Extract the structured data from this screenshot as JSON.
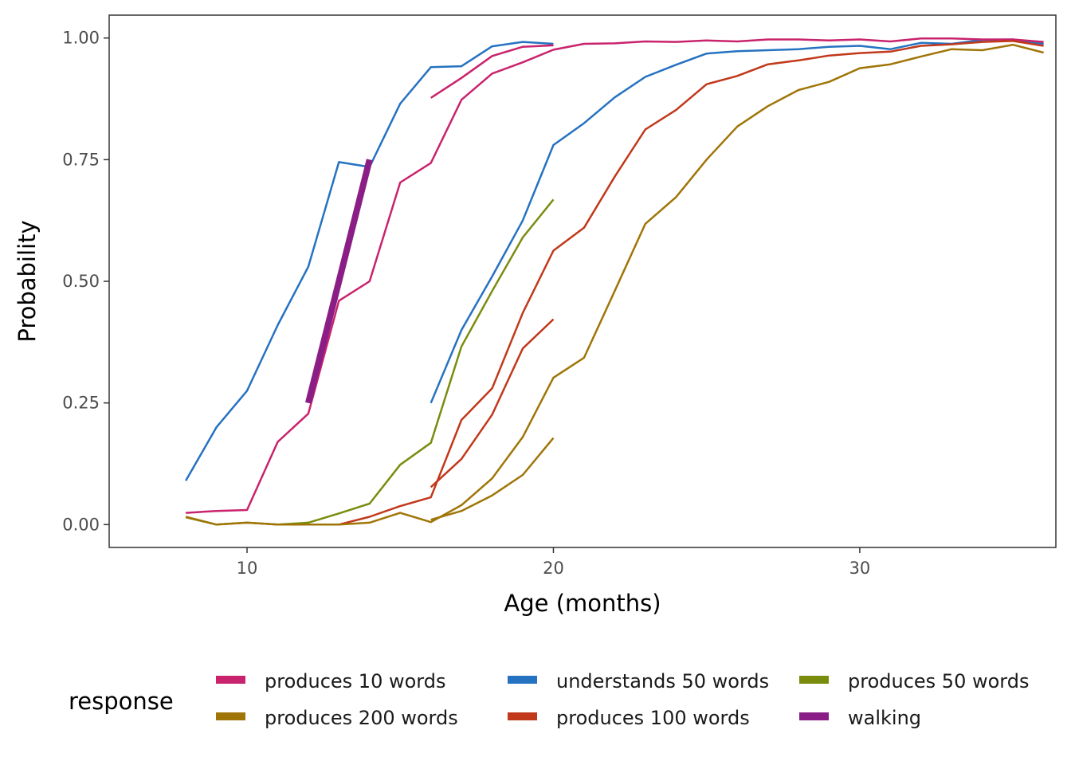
{
  "chart_data": {
    "type": "line",
    "xlabel": "Age (months)",
    "ylabel": "Probability",
    "xlim": [
      5.5,
      36.4
    ],
    "ylim": [
      -0.047,
      1.047
    ],
    "x_ticks": [
      10,
      20,
      30
    ],
    "x_tick_labels": [
      "10",
      "20",
      "30"
    ],
    "y_ticks": [
      0,
      0.25,
      0.5,
      0.75,
      1.0
    ],
    "y_tick_labels": [
      "0.00",
      "0.25",
      "0.50",
      "0.75",
      "1.00"
    ],
    "grid": false,
    "legend": {
      "title": "response",
      "position": "bottom",
      "items": [
        {
          "label": "produces 10 words",
          "color": "#c9236d"
        },
        {
          "label": "produces 200 words",
          "color": "#a07507"
        },
        {
          "label": "understands 50 words",
          "color": "#2572c1"
        },
        {
          "label": "produces 100 words",
          "color": "#c1381a"
        },
        {
          "label": "produces 50 words",
          "color": "#7a8c0d"
        },
        {
          "label": "walking",
          "color": "#8a1e86"
        }
      ]
    },
    "series": [
      {
        "name": "understands 50 words",
        "color": "#2572c1",
        "width": 2.5,
        "x": [
          8,
          9,
          10,
          11,
          12,
          13,
          14,
          15,
          16,
          17,
          18,
          19,
          20
        ],
        "y": [
          0.09,
          0.2,
          0.275,
          0.41,
          0.53,
          0.745,
          0.735,
          0.865,
          0.94,
          0.942,
          0.983,
          0.992,
          0.988
        ]
      },
      {
        "name": "understands 50 words",
        "color": "#2572c1",
        "width": 2.5,
        "x": [
          16,
          17,
          18,
          19,
          20,
          21,
          22,
          23,
          24,
          25,
          26,
          27,
          28,
          29,
          30,
          31,
          32,
          33,
          34,
          35,
          36
        ],
        "y": [
          0.25,
          0.4,
          0.51,
          0.625,
          0.78,
          0.825,
          0.878,
          0.92,
          0.945,
          0.968,
          0.973,
          0.975,
          0.977,
          0.982,
          0.984,
          0.977,
          0.99,
          0.988,
          0.996,
          0.997,
          0.988
        ]
      },
      {
        "name": "produces 10 words",
        "color": "#c9236d",
        "width": 2.5,
        "x": [
          8,
          9,
          10,
          11,
          12,
          13,
          14,
          15,
          16,
          17,
          18,
          19,
          20,
          21,
          22,
          23,
          24,
          25,
          26,
          27,
          28,
          29,
          30,
          31,
          32,
          33,
          34,
          35,
          36
        ],
        "y": [
          0.024,
          0.028,
          0.03,
          0.17,
          0.228,
          0.46,
          0.5,
          0.703,
          0.743,
          0.873,
          0.927,
          0.95,
          0.976,
          0.988,
          0.989,
          0.993,
          0.992,
          0.995,
          0.993,
          0.997,
          0.997,
          0.995,
          0.997,
          0.993,
          0.999,
          0.999,
          0.997,
          0.997,
          0.992
        ]
      },
      {
        "name": "produces 10 words",
        "color": "#c9236d",
        "width": 2.5,
        "x": [
          16,
          17,
          18,
          19,
          20
        ],
        "y": [
          0.877,
          0.918,
          0.963,
          0.982,
          0.985
        ]
      },
      {
        "name": "produces 50 words",
        "color": "#7a8c0d",
        "width": 2.5,
        "x": [
          8,
          9,
          10,
          11,
          12,
          13,
          14,
          15,
          16,
          17,
          18,
          19,
          20
        ],
        "y": [
          0.015,
          0.0,
          0.004,
          0.0,
          0.004,
          0.023,
          0.043,
          0.123,
          0.168,
          0.366,
          0.48,
          0.59,
          0.668
        ]
      },
      {
        "name": "produces 100 words",
        "color": "#c1381a",
        "width": 2.5,
        "x": [
          13,
          14,
          15,
          16,
          17,
          18,
          19,
          20,
          21,
          22,
          23,
          24,
          25,
          26,
          27,
          28,
          29,
          30,
          31,
          32,
          33,
          34,
          35,
          36
        ],
        "y": [
          0.0,
          0.016,
          0.038,
          0.056,
          0.215,
          0.28,
          0.435,
          0.563,
          0.61,
          0.715,
          0.812,
          0.852,
          0.905,
          0.922,
          0.946,
          0.954,
          0.964,
          0.969,
          0.972,
          0.984,
          0.987,
          0.992,
          0.994,
          0.984
        ]
      },
      {
        "name": "produces 100 words",
        "color": "#c1381a",
        "width": 2.5,
        "x": [
          16,
          17,
          18,
          19,
          20
        ],
        "y": [
          0.077,
          0.135,
          0.226,
          0.362,
          0.422
        ]
      },
      {
        "name": "produces 200 words",
        "color": "#a07507",
        "width": 2.5,
        "x": [
          8,
          9,
          10,
          11,
          12,
          13,
          14,
          15,
          16,
          17,
          18,
          19,
          20,
          21,
          22,
          23,
          24,
          25,
          26,
          27,
          28,
          29,
          30,
          31,
          32,
          33,
          34,
          35,
          36
        ],
        "y": [
          0.016,
          0.0,
          0.004,
          0.0,
          0.0,
          0.0,
          0.004,
          0.024,
          0.005,
          0.04,
          0.095,
          0.18,
          0.302,
          0.343,
          0.48,
          0.618,
          0.673,
          0.75,
          0.818,
          0.86,
          0.893,
          0.91,
          0.938,
          0.946,
          0.962,
          0.977,
          0.975,
          0.986,
          0.97
        ]
      },
      {
        "name": "produces 200 words",
        "color": "#a07507",
        "width": 2.5,
        "x": [
          16,
          17,
          18,
          19,
          20
        ],
        "y": [
          0.01,
          0.028,
          0.06,
          0.102,
          0.178
        ]
      },
      {
        "name": "walking",
        "color": "#8a1e86",
        "width": 8,
        "x": [
          12,
          14
        ],
        "y": [
          0.25,
          0.75
        ]
      }
    ]
  }
}
